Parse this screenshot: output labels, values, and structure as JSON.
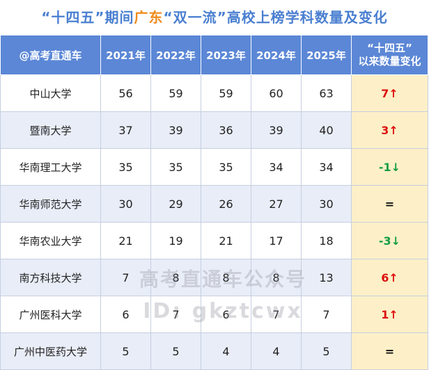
{
  "title": {
    "part1": "“十四五”期间",
    "part2": "广东",
    "part3": "“双一流”",
    "part4": "高校上榜学科数量及变化"
  },
  "table": {
    "headers": {
      "source": "@高考直通车",
      "y2021": "2021年",
      "y2022": "2022年",
      "y2023": "2023年",
      "y2024": "2024年",
      "y2025": "2025年",
      "change_line1": "“十四五”",
      "change_line2": "以来数量变化"
    },
    "rows": [
      {
        "school": "中山大学",
        "v2021": "56",
        "v2022": "59",
        "v2023": "59",
        "v2024": "60",
        "v2025": "63",
        "change": "7↑"
      },
      {
        "school": "暨南大学",
        "v2021": "37",
        "v2022": "39",
        "v2023": "36",
        "v2024": "39",
        "v2025": "40",
        "change": "3↑"
      },
      {
        "school": "华南理工大学",
        "v2021": "35",
        "v2022": "35",
        "v2023": "35",
        "v2024": "34",
        "v2025": "34",
        "change": "-1↓"
      },
      {
        "school": "华南师范大学",
        "v2021": "30",
        "v2022": "29",
        "v2023": "26",
        "v2024": "27",
        "v2025": "30",
        "change": "="
      },
      {
        "school": "华南农业大学",
        "v2021": "21",
        "v2022": "19",
        "v2023": "21",
        "v2024": "17",
        "v2025": "18",
        "change": "-3↓"
      },
      {
        "school": "南方科技大学",
        "v2021": "7",
        "v2022": "8",
        "v2023": "8",
        "v2024": "8",
        "v2025": "13",
        "change": "6↑"
      },
      {
        "school": "广州医科大学",
        "v2021": "6",
        "v2022": "7",
        "v2023": "6",
        "v2024": "7",
        "v2025": "7",
        "change": "1↑"
      },
      {
        "school": "广州中医药大学",
        "v2021": "5",
        "v2022": "5",
        "v2023": "4",
        "v2024": "4",
        "v2025": "5",
        "change": "="
      }
    ]
  },
  "watermark": {
    "name": "高考直通车公众号",
    "id": "ID: gkztcwx"
  },
  "colors": {
    "header_bg": "#5b87d6",
    "title_blue": "#4a7fd0",
    "title_orange": "#ef8b1c",
    "row_alt_bg": "#e8edf8",
    "change_bg": "#fdf0c8",
    "up_red": "#dd1111",
    "down_green": "#169c46"
  }
}
